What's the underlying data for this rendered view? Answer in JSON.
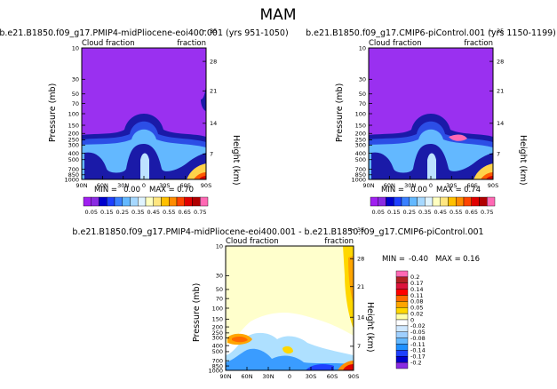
{
  "figure": {
    "season_title": "MAM"
  },
  "chart_data": [
    {
      "type": "heatmap",
      "title": "b.e21.B1850.f09_g17.PMIP4-midPliocene-eoi400.001 (yrs 951-1050)",
      "left_label": "Cloud fraction",
      "right_label": "fraction",
      "xlabel": "",
      "ylabel": "Pressure (mb)",
      "right_axis_label": "Height (km)",
      "x_ticks": [
        "90N",
        "60N",
        "30N",
        "0",
        "30S",
        "60S",
        "90S"
      ],
      "y_ticks": [
        "10",
        "30",
        "50",
        "70",
        "100",
        "150",
        "200",
        "250",
        "300",
        "400",
        "500",
        "700",
        "850",
        "1000"
      ],
      "y_labeled": [
        "10",
        "30",
        "50",
        "70",
        "100",
        "150",
        "200",
        "250",
        "300",
        "400",
        "500",
        "700",
        "850",
        "1000"
      ],
      "height_ticks": [
        "35",
        "28",
        "21",
        "14",
        "7"
      ],
      "min_label": "MIN =",
      "min": "0.00",
      "max_label": "MAX =",
      "max": "0.70"
    },
    {
      "type": "heatmap",
      "title": "b.e21.B1850.f09_g17.CMIP6-piControl.001 (yrs 1150-1199)",
      "left_label": "Cloud fraction",
      "right_label": "fraction",
      "xlabel": "",
      "ylabel": "Pressure (mb)",
      "right_axis_label": "Height (km)",
      "x_ticks": [
        "90N",
        "60N",
        "30N",
        "0",
        "30S",
        "60S",
        "90S"
      ],
      "y_ticks": [
        "10",
        "30",
        "50",
        "70",
        "100",
        "150",
        "200",
        "250",
        "300",
        "400",
        "500",
        "700",
        "850",
        "1000"
      ],
      "y_labeled": [
        "10",
        "30",
        "50",
        "70",
        "100",
        "150",
        "200",
        "250",
        "300",
        "400",
        "500",
        "700",
        "850",
        "1000"
      ],
      "height_ticks": [
        "35",
        "28",
        "21",
        "14",
        "7"
      ],
      "min_label": "MIN =",
      "min": "0.00",
      "max_label": "MAX =",
      "max": "0.74"
    },
    {
      "type": "heatmap",
      "title": "b.e21.B1850.f09_g17.PMIP4-midPliocene-eoi400.001 - b.e21.B1850.f09_g17.CMIP6-piControl.001",
      "left_label": "Cloud fraction",
      "right_label": "fraction",
      "xlabel": "",
      "ylabel": "Pressure (mb)",
      "right_axis_label": "Height (km)",
      "x_ticks": [
        "90N",
        "60N",
        "30N",
        "0",
        "30S",
        "60S",
        "90S"
      ],
      "y_ticks": [
        "10",
        "30",
        "50",
        "70",
        "100",
        "150",
        "200",
        "250",
        "300",
        "400",
        "500",
        "700",
        "850",
        "1000"
      ],
      "y_labeled": [
        "10",
        "30",
        "50",
        "70",
        "100",
        "150",
        "200",
        "250",
        "300",
        "400",
        "500",
        "700",
        "850",
        "1000"
      ],
      "height_ticks": [
        "35",
        "28",
        "21",
        "14",
        "7"
      ],
      "min_label": "MIN =",
      "min": "-0.40",
      "max_label": "MAX =",
      "max": "0.16"
    }
  ],
  "colorbar_abs": {
    "labels": [
      "0.05",
      "0.15",
      "0.25",
      "0.35",
      "0.45",
      "0.55",
      "0.65",
      "0.75"
    ],
    "colors": [
      "#a020f0",
      "#8a2be2",
      "#0000cd",
      "#1e40ff",
      "#3a80ff",
      "#63b8ff",
      "#a6d8ff",
      "#e0f4ff",
      "#ffffc0",
      "#ffe680",
      "#ffc000",
      "#ff8c00",
      "#ff4500",
      "#e00000",
      "#b00000",
      "#ff69b4"
    ]
  },
  "colorbar_diff": {
    "labels": [
      "0.2",
      "0.17",
      "0.14",
      "0.11",
      "0.08",
      "0.05",
      "0.02",
      "0",
      "-0.02",
      "-0.05",
      "-0.08",
      "-0.11",
      "-0.14",
      "-0.17",
      "-0.2"
    ],
    "colors": [
      "#ff69b4",
      "#b22222",
      "#dc143c",
      "#ff0000",
      "#ff6a00",
      "#ffa500",
      "#ffd700",
      "#ffffaa",
      "#ffffff",
      "#cfe8ff",
      "#9fd0ff",
      "#63b8ff",
      "#1e90ff",
      "#1e40ff",
      "#0000cd",
      "#8a2be2"
    ]
  }
}
